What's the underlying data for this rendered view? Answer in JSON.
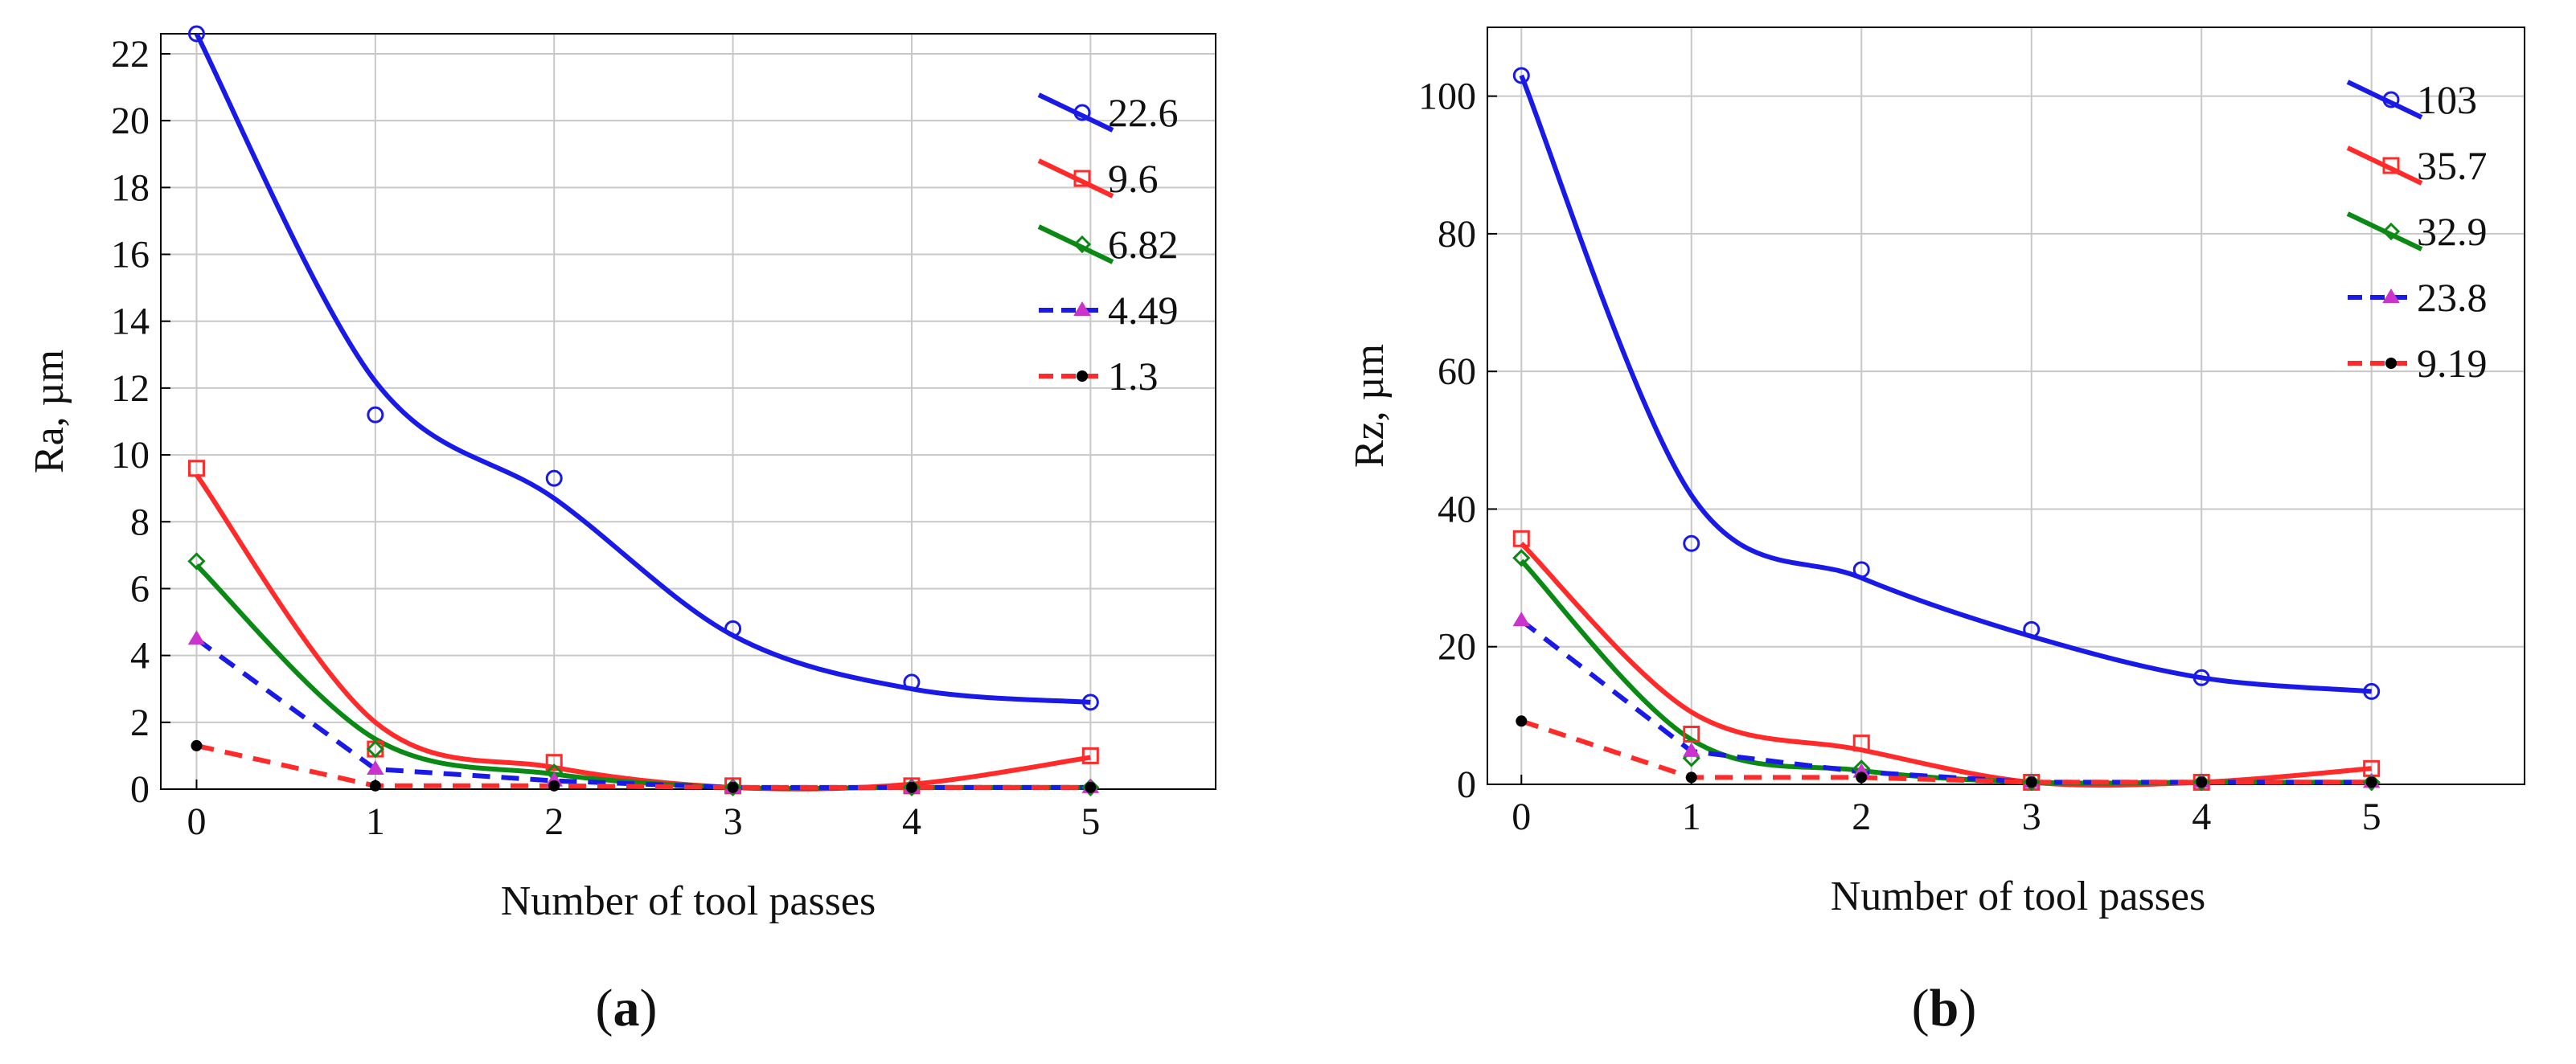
{
  "figure": {
    "panels": [
      {
        "label_open": "(",
        "label_letter": "a",
        "label_close": ")"
      },
      {
        "label_open": "(",
        "label_letter": "b",
        "label_close": ")"
      }
    ]
  },
  "chart_data": [
    {
      "type": "line",
      "title": "",
      "xlabel": "Number of tool passes",
      "ylabel": "Ra, µm",
      "xlim": [
        -0.2,
        5.7
      ],
      "ylim": [
        0,
        22.6
      ],
      "xticks": [
        0,
        1,
        2,
        3,
        4,
        5
      ],
      "yticks": [
        0,
        2,
        4,
        6,
        8,
        10,
        12,
        14,
        16,
        18,
        20,
        22
      ],
      "grid": true,
      "legend_position": "top-right",
      "x": [
        0,
        1,
        2,
        3,
        4,
        5
      ],
      "series": [
        {
          "name": "22.6",
          "color": "#1a1ae6",
          "style": "solid",
          "marker": "circle",
          "values": [
            22.6,
            11.2,
            9.3,
            4.8,
            3.2,
            2.6
          ],
          "fit": [
            22.6,
            12.2,
            8.7,
            4.6,
            3.0,
            2.6
          ]
        },
        {
          "name": "9.6",
          "color": "#ff2a2a",
          "style": "solid",
          "marker": "square",
          "values": [
            9.6,
            1.2,
            0.8,
            0.1,
            0.1,
            1.0
          ],
          "fit": [
            9.4,
            2.0,
            0.65,
            0.05,
            0.15,
            0.95
          ]
        },
        {
          "name": "6.82",
          "color": "#0a8a14",
          "style": "solid",
          "marker": "diamond",
          "values": [
            6.82,
            1.2,
            0.5,
            0.05,
            0.05,
            0.05
          ],
          "fit": [
            6.7,
            1.5,
            0.45,
            0.05,
            0.05,
            0.05
          ]
        },
        {
          "name": "4.49",
          "color": "#1a1ae6",
          "style": "dashed",
          "marker": "triangle",
          "values": [
            4.49,
            0.6,
            0.25,
            0.05,
            0.05,
            0.05
          ],
          "fit": [
            4.49,
            0.6,
            0.25,
            0.05,
            0.05,
            0.05
          ]
        },
        {
          "name": "1.3",
          "color": "#ff2a2a",
          "style": "dashed",
          "marker": "dot",
          "values": [
            1.3,
            0.1,
            0.1,
            0.05,
            0.05,
            0.05
          ],
          "fit": [
            1.3,
            0.1,
            0.1,
            0.05,
            0.05,
            0.05
          ]
        }
      ]
    },
    {
      "type": "line",
      "title": "",
      "xlabel": "Number of tool passes",
      "ylabel": "Rz, µm",
      "xlim": [
        -0.2,
        5.9
      ],
      "ylim": [
        0,
        110
      ],
      "xticks": [
        0,
        1,
        2,
        3,
        4,
        5
      ],
      "yticks": [
        0,
        20,
        40,
        60,
        80,
        100
      ],
      "grid": true,
      "legend_position": "top-right",
      "x": [
        0,
        1,
        2,
        3,
        4,
        5
      ],
      "series": [
        {
          "name": "103",
          "color": "#1a1ae6",
          "style": "solid",
          "marker": "circle",
          "values": [
            103,
            35,
            31.2,
            22.5,
            15.5,
            13.5
          ],
          "fit": [
            103,
            42,
            30,
            21.5,
            15.5,
            13.5
          ]
        },
        {
          "name": "35.7",
          "color": "#ff2a2a",
          "style": "solid",
          "marker": "square",
          "values": [
            35.7,
            7.3,
            6.0,
            0.3,
            0.3,
            2.3
          ],
          "fit": [
            35.0,
            10.5,
            5.0,
            0.3,
            0.3,
            2.3
          ]
        },
        {
          "name": "32.9",
          "color": "#0a8a14",
          "style": "solid",
          "marker": "diamond",
          "values": [
            32.9,
            3.8,
            2.3,
            0.3,
            0.3,
            0.3
          ],
          "fit": [
            32.5,
            6.5,
            2.0,
            0.3,
            0.3,
            0.3
          ]
        },
        {
          "name": "23.8",
          "color": "#1a1ae6",
          "style": "dashed",
          "marker": "triangle",
          "values": [
            23.8,
            4.8,
            1.8,
            0.3,
            0.3,
            0.3
          ],
          "fit": [
            23.8,
            4.8,
            1.8,
            0.3,
            0.3,
            0.3
          ]
        },
        {
          "name": "9.19",
          "color": "#ff2a2a",
          "style": "dashed",
          "marker": "dot",
          "values": [
            9.19,
            1.0,
            1.0,
            0.3,
            0.3,
            0.3
          ],
          "fit": [
            9.19,
            1.0,
            1.0,
            0.3,
            0.3,
            0.3
          ]
        }
      ]
    }
  ]
}
